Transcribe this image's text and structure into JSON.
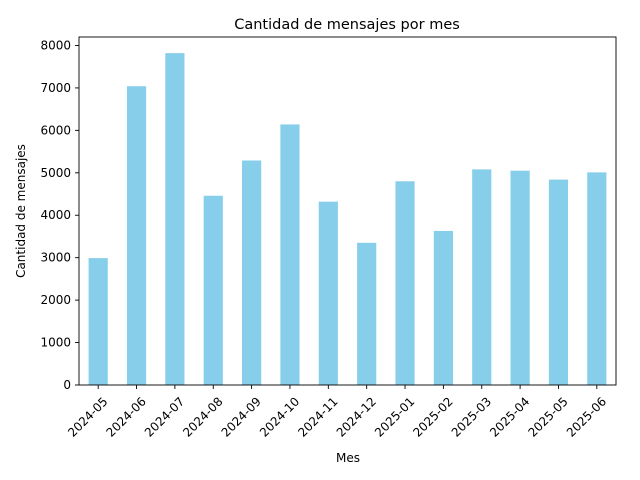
{
  "chart_data": {
    "type": "bar",
    "title": "Cantidad de mensajes por mes",
    "xlabel": "Mes",
    "ylabel": "Cantidad de mensajes",
    "categories": [
      "2024-05",
      "2024-06",
      "2024-07",
      "2024-08",
      "2024-09",
      "2024-10",
      "2024-11",
      "2024-12",
      "2025-01",
      "2025-02",
      "2025-03",
      "2025-04",
      "2025-05",
      "2025-06"
    ],
    "values": [
      2990,
      7040,
      7820,
      4460,
      5290,
      6140,
      4320,
      3350,
      4800,
      3630,
      5080,
      5050,
      4840,
      5010
    ],
    "ylim": [
      0,
      8200
    ],
    "yticks": [
      0,
      1000,
      2000,
      3000,
      4000,
      5000,
      6000,
      7000,
      8000
    ],
    "bar_color": "#87ceeb",
    "grid": false,
    "legend": "none"
  }
}
